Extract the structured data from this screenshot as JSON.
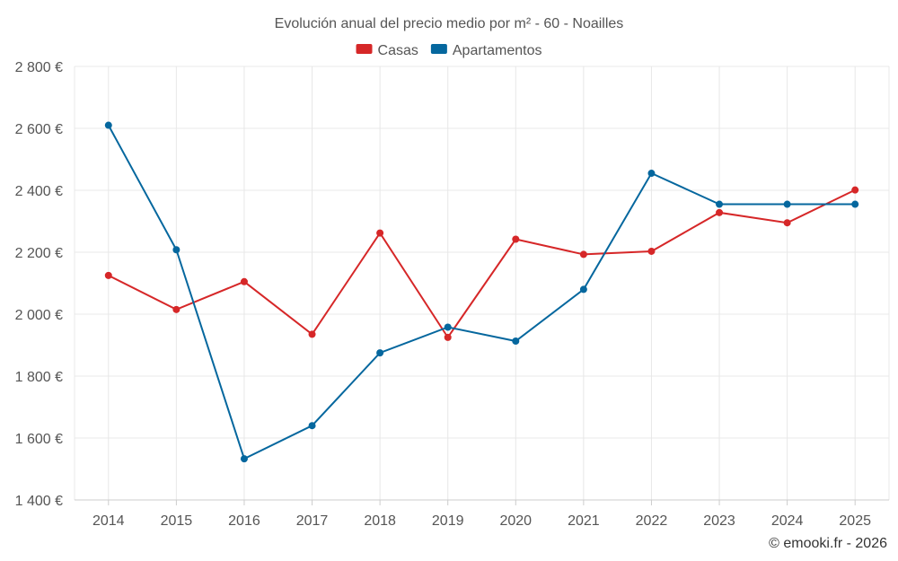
{
  "chart_data": {
    "type": "line",
    "title": "Evolución anual del precio medio por m² - 60 - Noailles",
    "categories": [
      "2014",
      "2015",
      "2016",
      "2017",
      "2018",
      "2019",
      "2020",
      "2021",
      "2022",
      "2023",
      "2024",
      "2025"
    ],
    "series": [
      {
        "name": "Casas",
        "color": "#d62728",
        "values": [
          2125,
          2015,
          2105,
          1935,
          2262,
          1925,
          2242,
          2193,
          2203,
          2328,
          2295,
          2401
        ]
      },
      {
        "name": "Apartamentos",
        "color": "#05679e",
        "values": [
          2610,
          2208,
          1533,
          1640,
          1875,
          1958,
          1913,
          2080,
          2455,
          2355,
          2355,
          2355
        ]
      }
    ],
    "yticks": [
      1400,
      1600,
      1800,
      2000,
      2200,
      2400,
      2600,
      2800
    ],
    "ytick_labels": [
      "1 400 €",
      "1 600 €",
      "1 800 €",
      "2 000 €",
      "2 200 €",
      "2 400 €",
      "2 600 €",
      "2 800 €"
    ],
    "ylim": [
      1400,
      2800
    ],
    "xlabel": "",
    "ylabel": "",
    "legend": "top-center",
    "grid": true
  },
  "credit": "© emooki.fr - 2026"
}
